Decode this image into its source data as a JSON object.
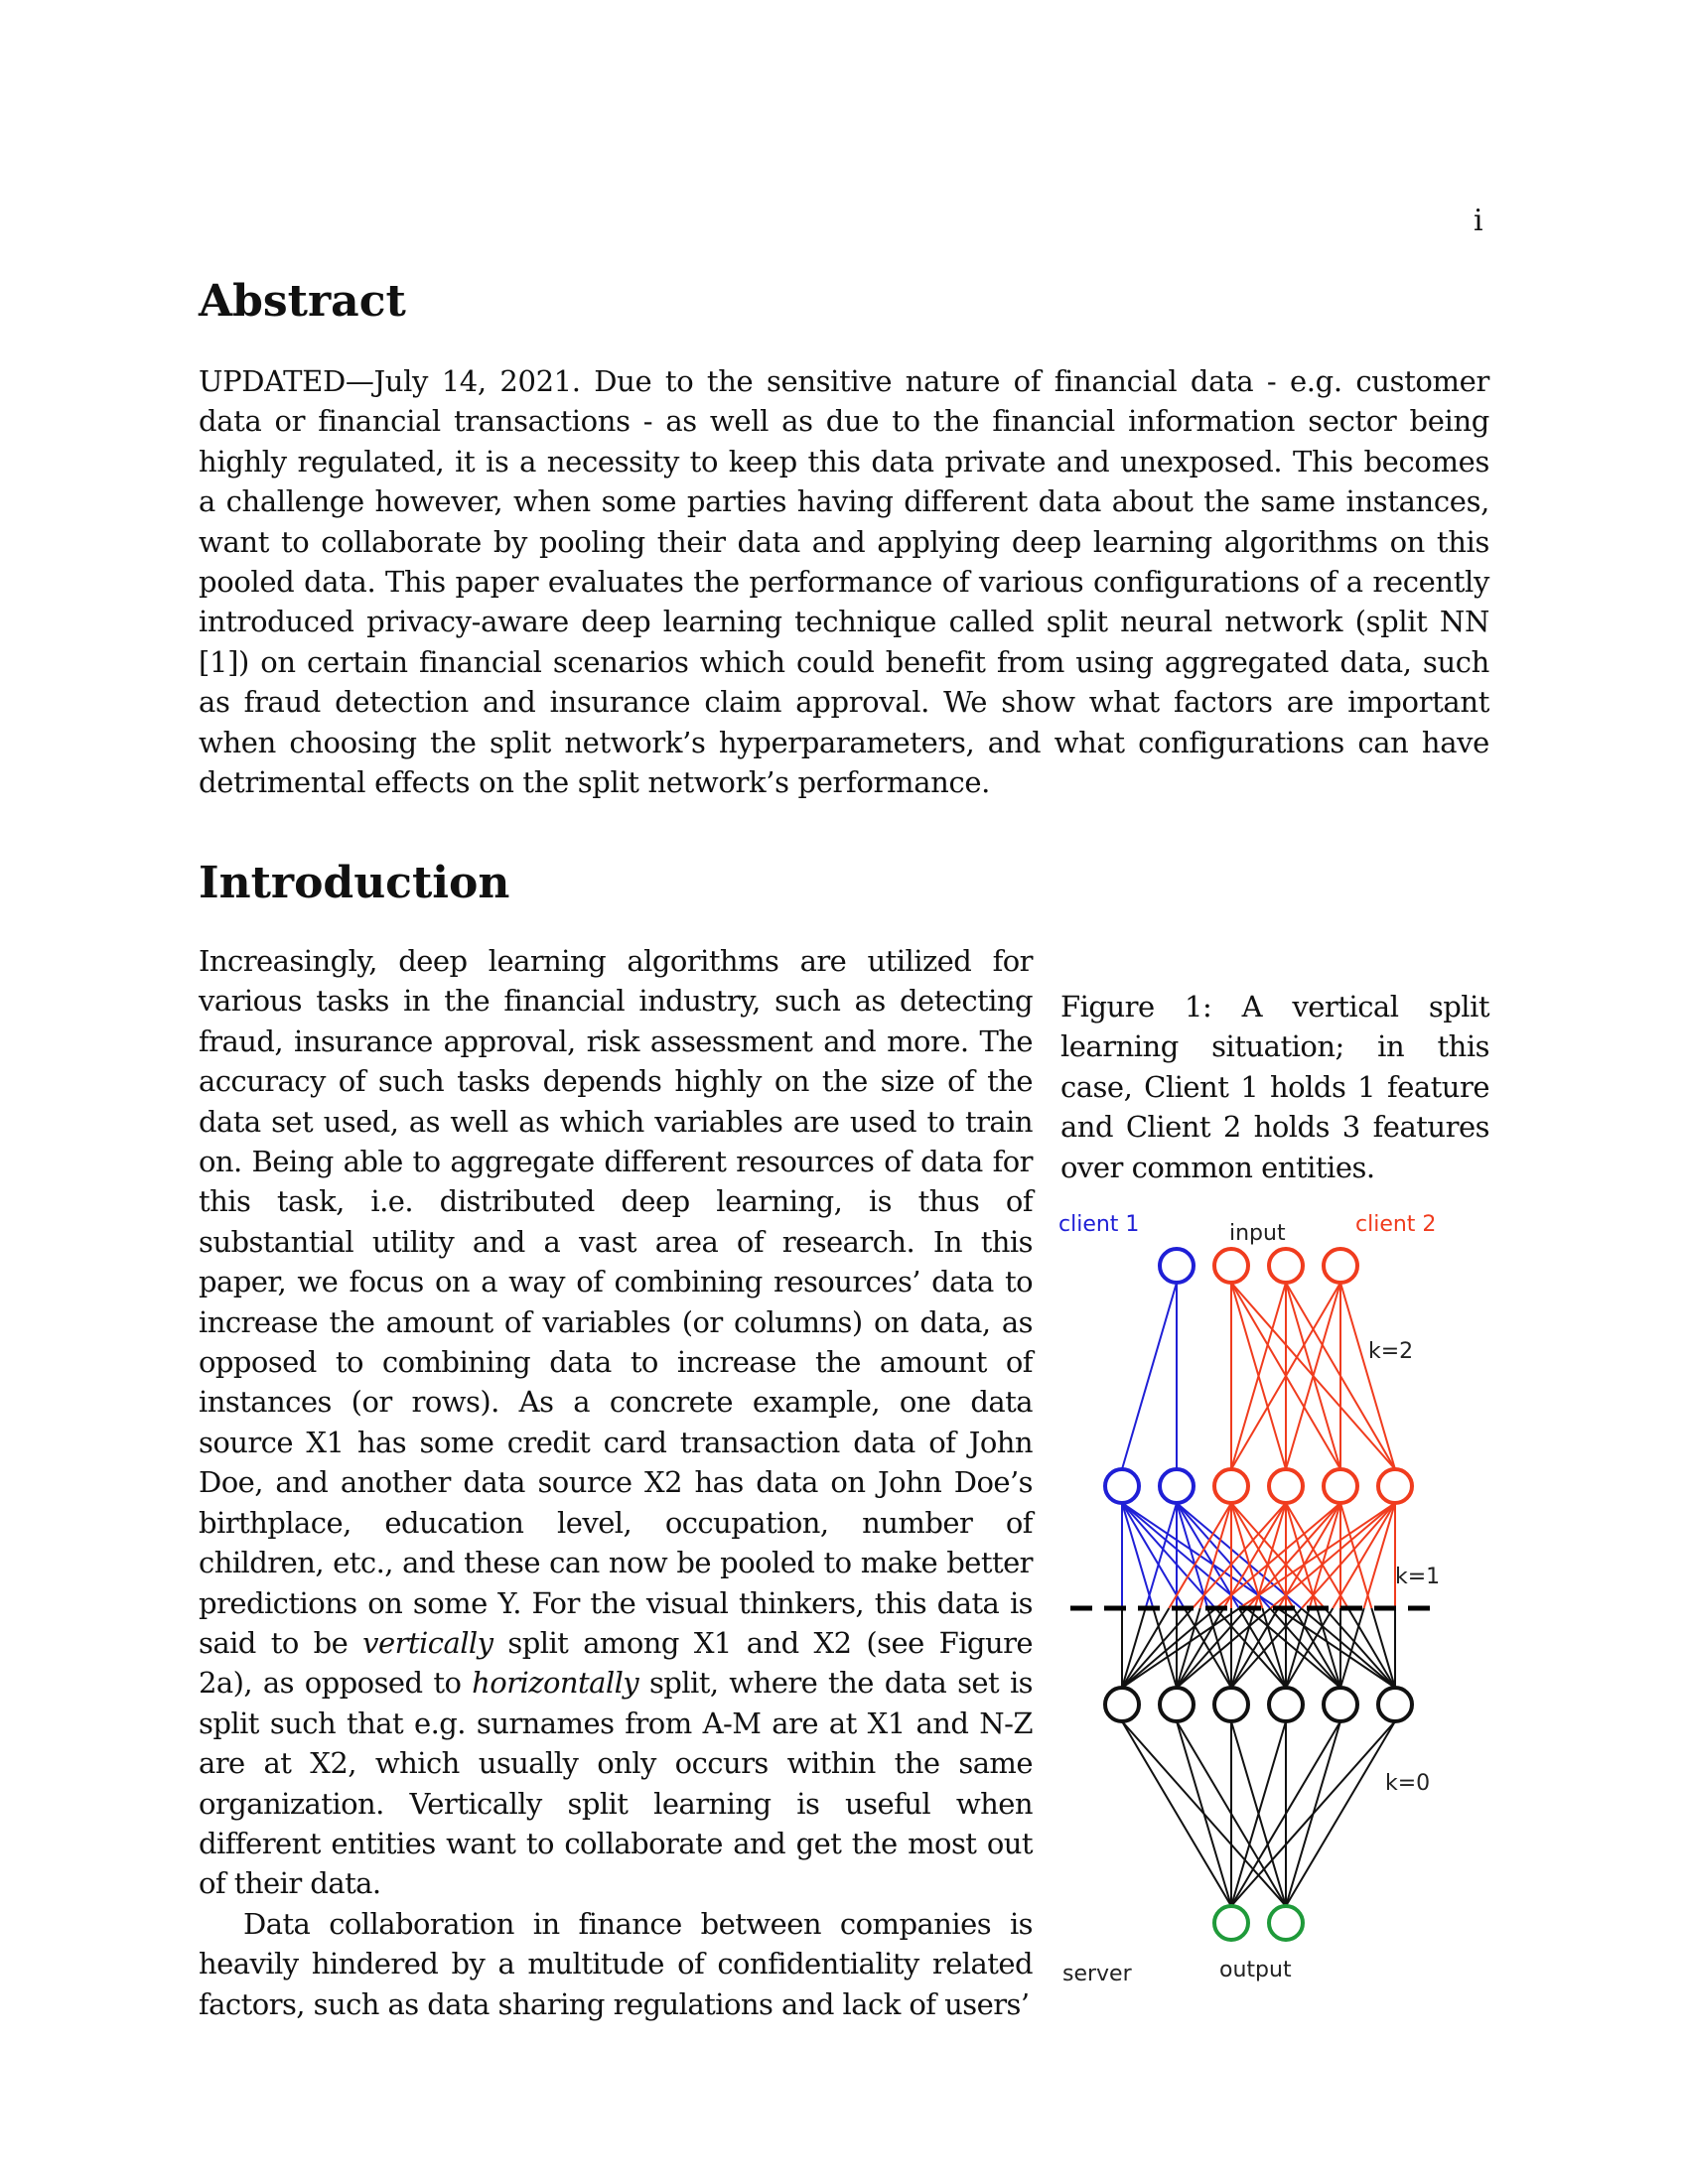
{
  "page_number": "i",
  "abstract": {
    "heading": "Abstract",
    "body": "UPDATED—July 14, 2021. Due to the sensitive nature of financial data - e.g. customer data or financial transactions - as well as due to the financial information sector being highly regulated, it is a necessity to keep this data private and unexposed. This becomes a challenge however, when some parties having different data about the same instances, want to collaborate by pooling their data and applying deep learning algorithms on this pooled data. This paper evaluates the performance of various configurations of a recently introduced privacy-aware deep learning technique called split neural network (split NN [1]) on certain financial scenarios which could benefit from using aggregated data, such as fraud detection and insurance claim approval. We show what factors are important when choosing the split network’s hyperparameters, and what configurations can have detrimental effects on the split network’s performance."
  },
  "introduction": {
    "heading": "Introduction",
    "p1": {
      "text_1": "Increasingly, deep learning algorithms are utilized for various tasks in the financial industry, such as detecting fraud, insurance approval, risk assessment and more. The accuracy of such tasks depends highly on the size of the data set used, as well as which variables are used to train on. Being able to aggregate different resources of data for this task, i.e. distributed deep learning, is thus of substantial utility and a vast area of research. In this paper, we focus on a way of combining resources’ data to increase the amount of variables (or columns) on data, as opposed to combining data to increase the amount of instances (or rows). As a concrete example, one data source X1 has some credit card transaction data of John Doe, and another data source X2 has data on John Doe’s birthplace, education level, occupation, number of children, etc., and these can now be pooled to make better predictions on some Y. For the visual thinkers, this data is said to be ",
      "em_1": "vertically",
      "text_2": " split among X1 and X2 (see Figure 2a), as opposed to ",
      "em_2": "horizontally",
      "text_3": " split, where the data set is split such that e.g. surnames from A-M are at X1 and N-Z are at X2, which usually only occurs within the same organization. Vertically split learning is useful when different entities want to collaborate and get the most out of their data."
    },
    "p2": "Data collaboration in finance between companies is heavily hindered by a multitude of confidentiality related factors, such as data sharing regulations and lack of users’"
  },
  "figure": {
    "caption": "Figure 1: A vertical split learning situation; in this case, Client 1 holds 1 feature and Client 2 holds 3 features over common entities.",
    "labels": {
      "client1": "client 1",
      "input": "input",
      "client2": "client 2",
      "k2": "k=2",
      "k1": "k=1",
      "k0": "k=0",
      "server": "server",
      "output": "output"
    },
    "colors": {
      "client1": "#1f1fd6",
      "client2": "#f03c1e",
      "server": "#111111",
      "output": "#1f9a3a"
    }
  }
}
